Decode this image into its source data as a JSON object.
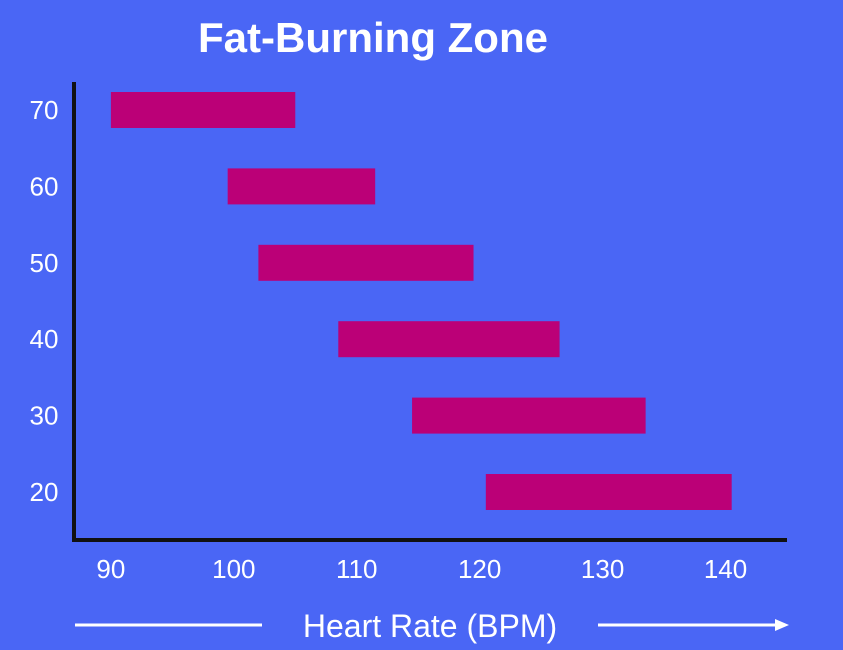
{
  "colors": {
    "background": "#4a66f5",
    "bar": "#bb0077",
    "axis": "#111111",
    "text": "#ffffff"
  },
  "chart_data": {
    "type": "bar",
    "orientation": "horizontal-range",
    "title": "Fat-Burning Zone",
    "xlabel": "Heart Rate (BPM)",
    "ylabel": "",
    "x_ticks": [
      90,
      100,
      110,
      120,
      130,
      140
    ],
    "xlim": [
      87,
      145
    ],
    "categories": [
      "70",
      "60",
      "50",
      "40",
      "30",
      "20"
    ],
    "ranges": [
      [
        90,
        105
      ],
      [
        99.5,
        111.5
      ],
      [
        102,
        119.5
      ],
      [
        108.5,
        126.5
      ],
      [
        114.5,
        133.5
      ],
      [
        120.5,
        140.5
      ]
    ],
    "grid": false,
    "legend": "none"
  }
}
